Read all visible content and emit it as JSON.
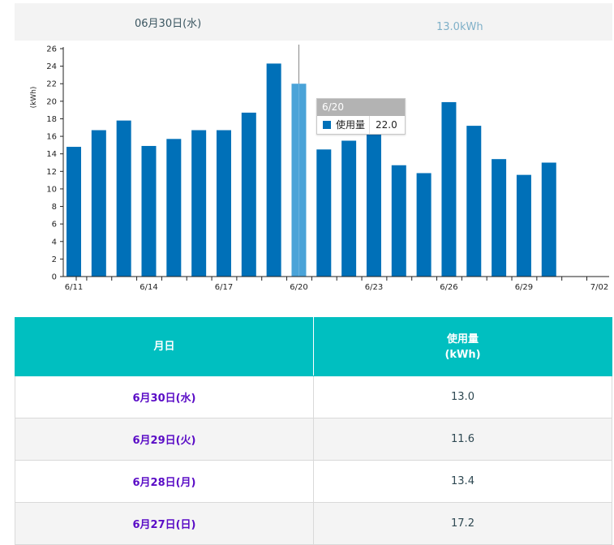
{
  "summary": {
    "date": "06月30日(水)",
    "value": "13.0kWh"
  },
  "colors": {
    "bar": "#0070b8",
    "bar_highlight": "#4aa3d8",
    "header": "#00bfc0",
    "date_link": "#5a0cc6"
  },
  "chart_data": {
    "type": "bar",
    "ylabel": "(kWh)",
    "ylim": [
      0,
      26
    ],
    "yticks": [
      0,
      2,
      4,
      6,
      8,
      10,
      12,
      14,
      16,
      18,
      20,
      22,
      24,
      26
    ],
    "x_tick_labels": [
      "6/11",
      "6/14",
      "6/17",
      "6/20",
      "6/23",
      "6/26",
      "6/29",
      "7/02"
    ],
    "categories": [
      "6/11",
      "6/12",
      "6/13",
      "6/14",
      "6/15",
      "6/16",
      "6/17",
      "6/18",
      "6/19",
      "6/20",
      "6/21",
      "6/22",
      "6/23",
      "6/24",
      "6/25",
      "6/26",
      "6/27",
      "6/28",
      "6/29",
      "6/30",
      "7/01",
      "7/02"
    ],
    "series": [
      {
        "name": "使用量",
        "values": [
          14.8,
          16.7,
          17.8,
          14.9,
          15.7,
          16.7,
          16.7,
          18.7,
          24.3,
          22.0,
          14.5,
          15.5,
          16.5,
          12.7,
          11.8,
          19.9,
          17.2,
          13.4,
          11.6,
          13.0,
          null,
          null
        ]
      }
    ],
    "highlight": "6/20",
    "tooltip": {
      "title": "6/20",
      "series": "使用量",
      "value": "22.0"
    }
  },
  "table": {
    "headers": [
      "月日",
      "使用量",
      "(kWh)"
    ],
    "rows": [
      {
        "date": "6月30日(水)",
        "value": "13.0"
      },
      {
        "date": "6月29日(火)",
        "value": "11.6"
      },
      {
        "date": "6月28日(月)",
        "value": "13.4"
      },
      {
        "date": "6月27日(日)",
        "value": "17.2"
      }
    ]
  }
}
